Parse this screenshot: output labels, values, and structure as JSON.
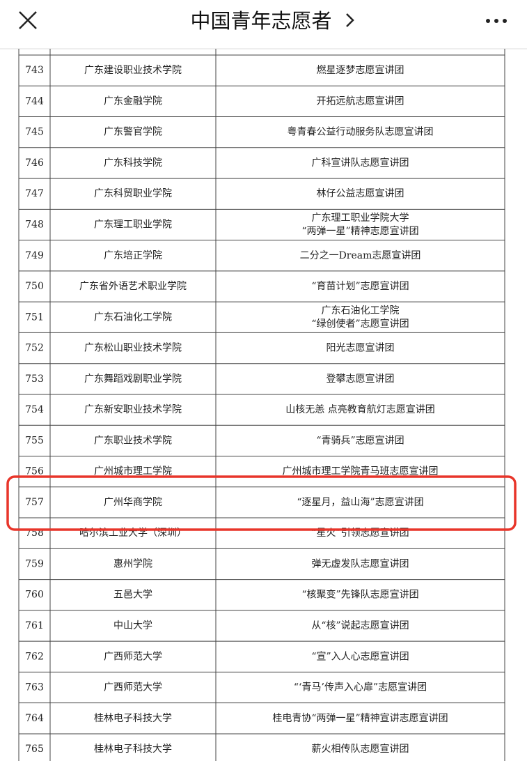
{
  "header": {
    "title": "中国青年志愿者"
  },
  "table": {
    "rows": [
      [
        743,
        "广东建设职业技术学院",
        [
          "燃星逐梦志愿宣讲团"
        ]
      ],
      [
        744,
        "广东金融学院",
        [
          "开拓远航志愿宣讲团"
        ]
      ],
      [
        745,
        "广东警官学院",
        [
          "粤青春公益行动服务队志愿宣讲团"
        ]
      ],
      [
        746,
        "广东科技学院",
        [
          "广科宣讲队志愿宣讲团"
        ]
      ],
      [
        747,
        "广东科贸职业学院",
        [
          "林仔公益志愿宣讲团"
        ]
      ],
      [
        748,
        "广东理工职业学院",
        [
          "广东理工职业学院大学",
          "“两弹一星”精神志愿宣讲团"
        ]
      ],
      [
        749,
        "广东培正学院",
        [
          "二分之一Dream志愿宣讲团"
        ]
      ],
      [
        750,
        "广东省外语艺术职业学院",
        [
          "“育苗计划”志愿宣讲团"
        ]
      ],
      [
        751,
        "广东石油化工学院",
        [
          "广东石油化工学院",
          "“绿创使者”志愿宣讲团"
        ]
      ],
      [
        752,
        "广东松山职业技术学院",
        [
          "阳光志愿宣讲团"
        ]
      ],
      [
        753,
        "广东舞蹈戏剧职业学院",
        [
          "登攀志愿宣讲团"
        ]
      ],
      [
        754,
        "广东新安职业技术学院",
        [
          "山核无恙 点亮教育航灯志愿宣讲团"
        ]
      ],
      [
        755,
        "广东职业技术学院",
        [
          "“青骑兵”志愿宣讲团"
        ]
      ],
      [
        756,
        "广州城市理工学院",
        [
          "广州城市理工学院青马班志愿宣讲团"
        ]
      ],
      [
        757,
        "广州华商学院",
        [
          "“逐星月，益山海”志愿宣讲团"
        ]
      ],
      [
        758,
        "哈尔滨工业大学（深圳）",
        [
          "“星火”引领志愿宣讲团"
        ]
      ],
      [
        759,
        "惠州学院",
        [
          "弹无虚发队志愿宣讲团"
        ]
      ],
      [
        760,
        "五邑大学",
        [
          "“核聚变”先锋队志愿宣讲团"
        ]
      ],
      [
        761,
        "中山大学",
        [
          "从“核”说起志愿宣讲团"
        ]
      ],
      [
        762,
        "广西师范大学",
        [
          "“宣”入人心志愿宣讲团"
        ]
      ],
      [
        763,
        "广西师范大学",
        [
          "“‘青马’传声入心扉”志愿宣讲团"
        ]
      ],
      [
        764,
        "桂林电子科技大学",
        [
          "桂电青协“两弹一星”精神宣讲志愿宣讲团"
        ]
      ],
      [
        765,
        "桂林电子科技大学",
        [
          "薪火相传队志愿宣讲团"
        ]
      ]
    ]
  }
}
